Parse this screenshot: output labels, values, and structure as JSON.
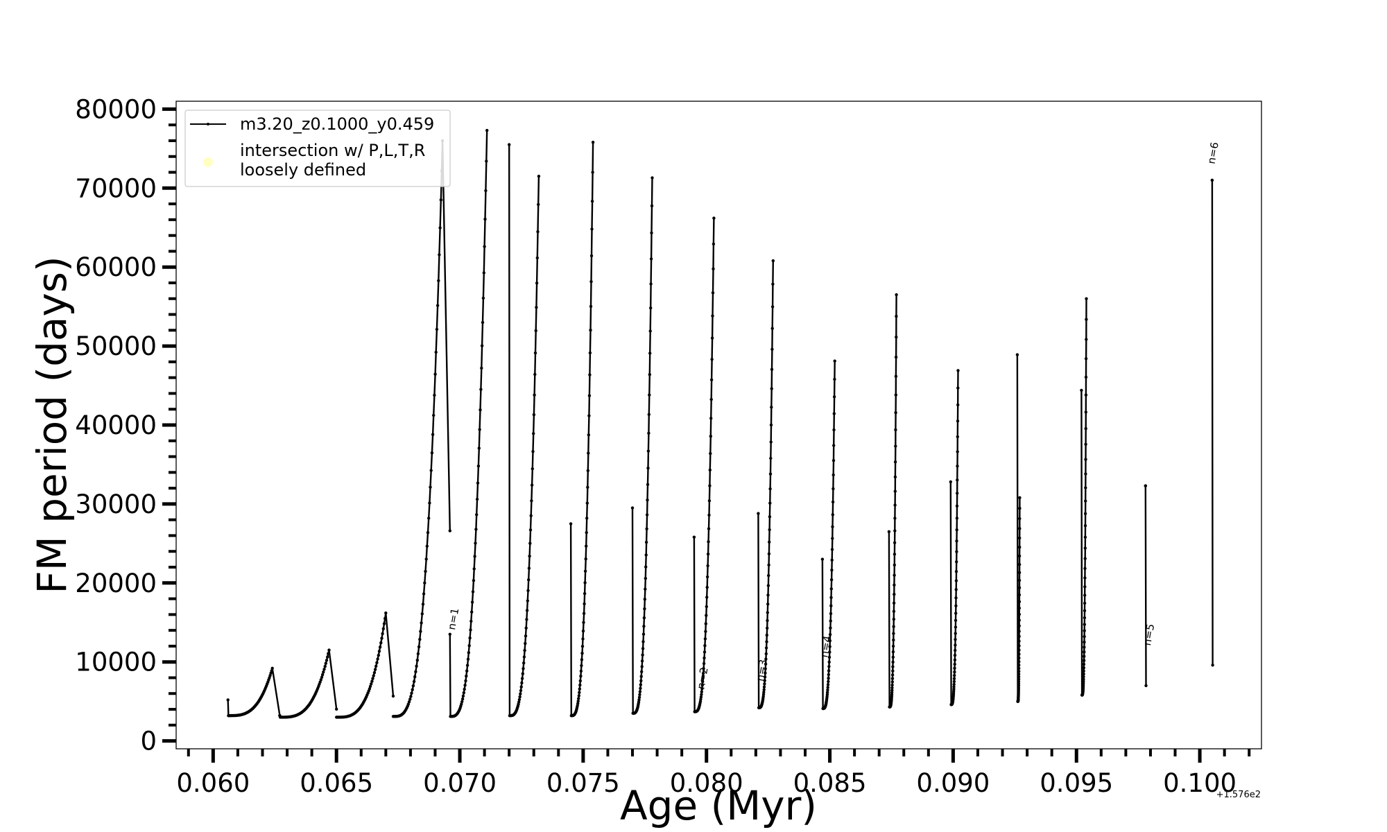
{
  "chart_data": {
    "type": "line",
    "xlabel": "Age (Myr)",
    "ylabel": "FM period (days)",
    "x_offset_label": "+1.576e2",
    "x_offset": 157.6,
    "xlim": [
      0.0585,
      0.1025
    ],
    "ylim": [
      -1000,
      81000
    ],
    "xticks": [
      0.06,
      0.065,
      0.07,
      0.075,
      0.08,
      0.085,
      0.09,
      0.095,
      0.1
    ],
    "xtick_labels": [
      "0.060",
      "0.065",
      "0.070",
      "0.075",
      "0.080",
      "0.085",
      "0.090",
      "0.095",
      "0.100"
    ],
    "yticks": [
      0,
      10000,
      20000,
      30000,
      40000,
      50000,
      60000,
      70000,
      80000
    ],
    "ytick_labels": [
      "0",
      "10000",
      "20000",
      "30000",
      "40000",
      "50000",
      "60000",
      "70000",
      "80000"
    ],
    "grid": false,
    "legend": {
      "placement": "upper-left",
      "entries": [
        {
          "label": "m3.20_z0.1000_y0.459",
          "marker": "line-dot",
          "color": "#000000"
        },
        {
          "label": "intersection w/ P,L,T,R\nloosely defined",
          "marker": "circle",
          "color": "#ffff99"
        }
      ]
    },
    "series": [
      {
        "name": "m3.20_z0.1000_y0.459",
        "color": "#000000",
        "cycles": [
          {
            "x0": 0.0606,
            "y0": 5200,
            "ymin": 3200,
            "xpeak": 0.0624,
            "ypeak": 9200,
            "xend": 0.0627
          },
          {
            "x0": 0.0627,
            "y0": 3200,
            "ymin": 3000,
            "xpeak": 0.0647,
            "ypeak": 11500,
            "xend": 0.065
          },
          {
            "x0": 0.065,
            "y0": 3000,
            "ymin": 3000,
            "xpeak": 0.067,
            "ypeak": 16200,
            "xend": 0.0673
          },
          {
            "x0": 0.0673,
            "y0": 3100,
            "ymin": 3100,
            "xpeak": 0.0693,
            "ypeak": 76000,
            "xend": 0.0696
          },
          {
            "x0": 0.0696,
            "y0": 13500,
            "ymin": 3100,
            "xpeak": 0.0711,
            "ypeak": 77300,
            "xend": 0.0711
          },
          {
            "x0": 0.072,
            "y0": 75500,
            "ymin": 3200,
            "xpeak": 0.0732,
            "ypeak": 71500,
            "xend": 0.0732
          },
          {
            "x0": 0.0745,
            "y0": 27500,
            "ymin": 3200,
            "xpeak": 0.0754,
            "ypeak": 75800,
            "xend": 0.0754
          },
          {
            "x0": 0.077,
            "y0": 29500,
            "ymin": 3500,
            "xpeak": 0.0778,
            "ypeak": 71300,
            "xend": 0.0778
          },
          {
            "x0": 0.0795,
            "y0": 25800,
            "ymin": 3700,
            "xpeak": 0.0803,
            "ypeak": 66200,
            "xend": 0.0803
          },
          {
            "x0": 0.0821,
            "y0": 28800,
            "ymin": 4200,
            "xpeak": 0.0827,
            "ypeak": 60800,
            "xend": 0.0827
          },
          {
            "x0": 0.0847,
            "y0": 23000,
            "ymin": 4100,
            "xpeak": 0.0852,
            "ypeak": 48100,
            "xend": 0.0852
          },
          {
            "x0": 0.0874,
            "y0": 26500,
            "ymin": 4300,
            "xpeak": 0.0877,
            "ypeak": 56500,
            "xend": 0.0877
          },
          {
            "x0": 0.0899,
            "y0": 32800,
            "ymin": 4600,
            "xpeak": 0.0902,
            "ypeak": 46900,
            "xend": 0.0902
          },
          {
            "x0": 0.0926,
            "y0": 48900,
            "ymin": 5000,
            "xpeak": 0.0927,
            "ypeak": 30800,
            "xend": 0.0927
          },
          {
            "x0": 0.0952,
            "y0": 44400,
            "ymin": 5800,
            "xpeak": 0.0954,
            "ypeak": 56000,
            "xend": 0.0954
          },
          {
            "x0": 0.0978,
            "y0": 32300,
            "ymin": 7000,
            "xpeak": 0.0978,
            "ypeak": 32300,
            "xend": 0.0978
          },
          {
            "x0": 0.1005,
            "y0": 71000,
            "ymin": 9600,
            "xpeak": 0.1005,
            "ypeak": 71000,
            "xend": 0.1005
          }
        ]
      }
    ],
    "annotations": [
      {
        "text": "n=1",
        "x": 0.0698,
        "y": 14000
      },
      {
        "text": "n=2",
        "x": 0.0799,
        "y": 6500
      },
      {
        "text": "n=3",
        "x": 0.0823,
        "y": 7500
      },
      {
        "text": "n=4",
        "x": 0.0849,
        "y": 10500
      },
      {
        "text": "n=5",
        "x": 0.098,
        "y": 12000
      },
      {
        "text": "n=6",
        "x": 0.1006,
        "y": 73000
      }
    ]
  }
}
